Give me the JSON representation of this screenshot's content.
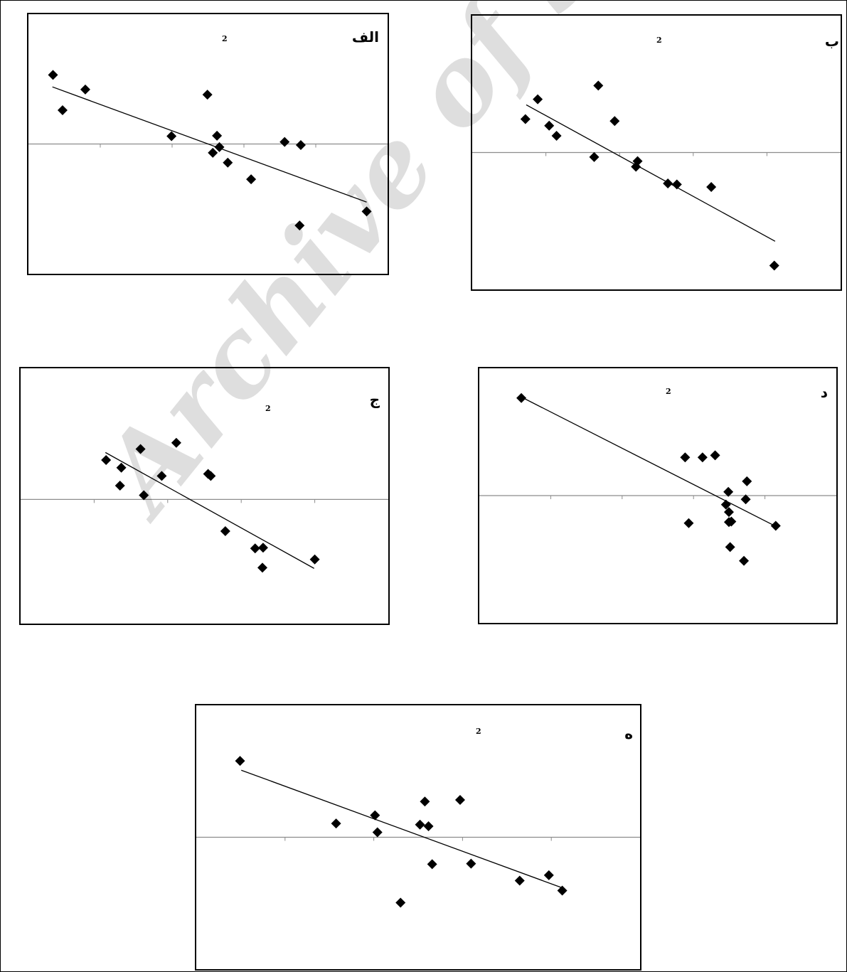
{
  "watermark": "Archive of SID",
  "style": {
    "axis_color": "#8c8c8c",
    "marker_color": "#000000",
    "trend_color": "#000000"
  },
  "chart_data": [
    {
      "id": "alef",
      "type": "scatter",
      "label": "الف",
      "r2_label": "2",
      "points": [
        [
          0.31,
          1.33
        ],
        [
          0.47,
          0.65
        ],
        [
          0.85,
          1.05
        ],
        [
          2.29,
          0.15
        ],
        [
          2.89,
          0.95
        ],
        [
          2.98,
          -0.17
        ],
        [
          3.05,
          0.16
        ],
        [
          3.09,
          -0.06
        ],
        [
          3.23,
          -0.36
        ],
        [
          3.62,
          -0.68
        ],
        [
          4.18,
          0.04
        ],
        [
          4.45,
          -0.02
        ],
        [
          4.43,
          -1.57
        ],
        [
          5.55,
          -1.3
        ]
      ],
      "trendline": [
        [
          0.3,
          1.1
        ],
        [
          5.55,
          -1.12
        ]
      ],
      "xlim": [
        -0.1,
        5.9
      ],
      "ylim": [
        -2.5,
        2.5
      ],
      "grid": false,
      "legend": "none"
    },
    {
      "id": "be",
      "type": "scatter",
      "label": "ب",
      "r2_label": "2",
      "points": [
        [
          0.25,
          0.66
        ],
        [
          0.4,
          1.05
        ],
        [
          0.54,
          0.53
        ],
        [
          0.63,
          0.33
        ],
        [
          1.09,
          -0.09
        ],
        [
          1.14,
          1.32
        ],
        [
          1.34,
          0.62
        ],
        [
          1.6,
          -0.28
        ],
        [
          1.62,
          -0.17
        ],
        [
          1.99,
          -0.61
        ],
        [
          2.1,
          -0.63
        ],
        [
          2.52,
          -0.68
        ],
        [
          3.29,
          -2.23
        ]
      ],
      "trendline": [
        [
          0.26,
          0.94
        ],
        [
          3.3,
          -1.75
        ]
      ],
      "xlim": [
        -0.4,
        4.1
      ],
      "ylim": [
        -2.7,
        2.7
      ],
      "grid": false,
      "legend": "none"
    },
    {
      "id": "jim",
      "type": "scatter",
      "label": "ج",
      "r2_label": "2",
      "points": [
        [
          0.64,
          0.57
        ],
        [
          0.85,
          0.2
        ],
        [
          0.87,
          0.46
        ],
        [
          1.16,
          0.73
        ],
        [
          1.21,
          0.06
        ],
        [
          1.48,
          0.34
        ],
        [
          1.7,
          0.82
        ],
        [
          2.18,
          0.37
        ],
        [
          2.22,
          0.34
        ],
        [
          2.44,
          -0.46
        ],
        [
          2.89,
          -0.71
        ],
        [
          3.0,
          -0.99
        ],
        [
          3.01,
          -0.7
        ],
        [
          3.79,
          -0.87
        ]
      ],
      "trendline": [
        [
          0.63,
          0.68
        ],
        [
          3.78,
          -1.0
        ]
      ],
      "xlim": [
        -0.65,
        4.9
      ],
      "ylim": [
        -1.8,
        1.9
      ],
      "grid": false,
      "legend": "none"
    },
    {
      "id": "dal",
      "type": "scatter",
      "label": "د",
      "r2_label": "2",
      "points": [
        [
          -0.25,
          1.84
        ],
        [
          2.48,
          0.72
        ],
        [
          2.77,
          0.72
        ],
        [
          2.98,
          0.76
        ],
        [
          2.54,
          -0.52
        ],
        [
          3.16,
          -0.17
        ],
        [
          3.2,
          0.07
        ],
        [
          3.21,
          -0.31
        ],
        [
          3.21,
          -0.5
        ],
        [
          3.23,
          -0.97
        ],
        [
          3.25,
          -0.49
        ],
        [
          3.46,
          -1.23
        ],
        [
          3.49,
          -0.07
        ],
        [
          3.51,
          0.27
        ],
        [
          3.99,
          -0.57
        ]
      ],
      "trendline": [
        [
          -0.2,
          1.83
        ],
        [
          3.94,
          -0.55
        ]
      ],
      "xlim": [
        -0.95,
        5.0
      ],
      "ylim": [
        -2.4,
        2.4
      ],
      "grid": false,
      "legend": "none"
    },
    {
      "id": "he",
      "type": "scatter",
      "label": "ه",
      "r2_label": "2",
      "points": [
        [
          0.26,
          1.39
        ],
        [
          1.05,
          0.25
        ],
        [
          1.37,
          0.4
        ],
        [
          1.39,
          0.09
        ],
        [
          1.58,
          -1.19
        ],
        [
          1.74,
          0.23
        ],
        [
          1.78,
          0.65
        ],
        [
          1.81,
          0.2
        ],
        [
          1.84,
          -0.49
        ],
        [
          2.07,
          0.68
        ],
        [
          2.16,
          -0.48
        ],
        [
          2.56,
          -0.79
        ],
        [
          2.8,
          -0.69
        ],
        [
          2.91,
          -0.97
        ]
      ],
      "trendline": [
        [
          0.27,
          1.22
        ],
        [
          2.91,
          -0.92
        ]
      ],
      "xlim": [
        -0.1,
        3.55
      ],
      "ylim": [
        -2.4,
        2.4
      ],
      "grid": false,
      "legend": "none"
    }
  ]
}
